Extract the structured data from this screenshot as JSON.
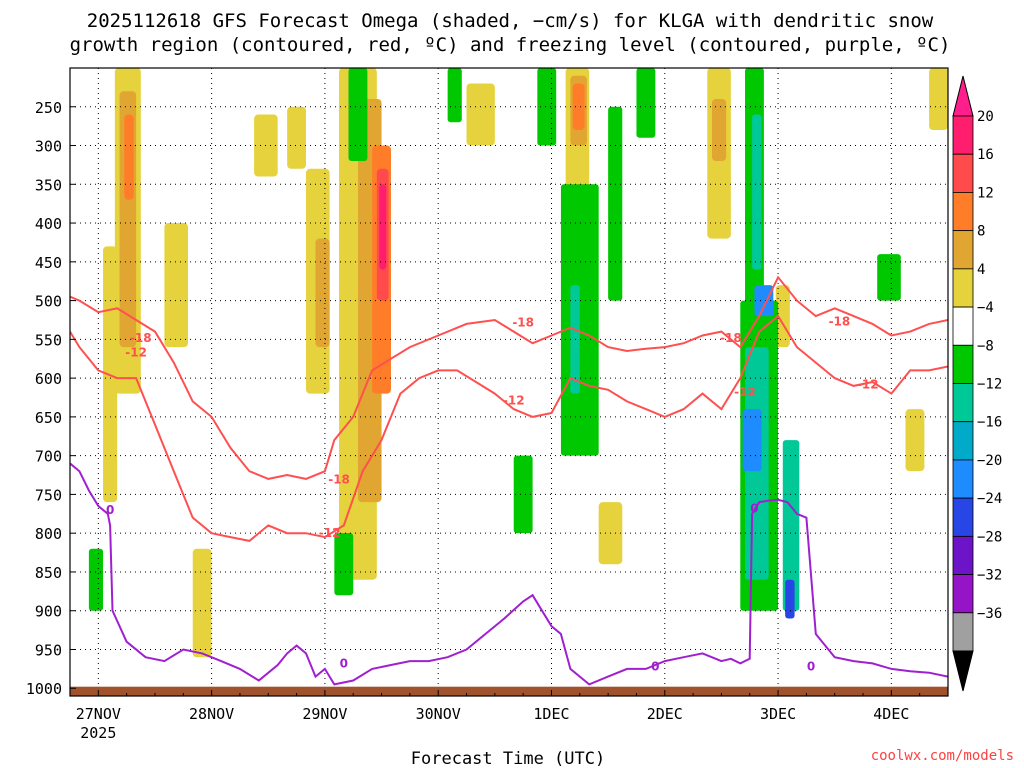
{
  "chart_data": {
    "type": "heatmap",
    "title_line1": "2025112618 GFS Forecast Omega (shaded, −cm/s) for KLGA with dendritic snow",
    "title_line2": "growth region (contoured, red, ºC) and freezing level (contoured, purple, ºC)",
    "xlabel": "Forecast Time (UTC)",
    "ylabel": "",
    "credit": "coolwx.com/models",
    "y_axis": {
      "quantity": "pressure (hPa)",
      "ticks": [
        250,
        300,
        350,
        400,
        450,
        500,
        550,
        600,
        650,
        700,
        750,
        800,
        850,
        900,
        950,
        1000
      ],
      "range": [
        200,
        1010
      ],
      "grid": true
    },
    "x_axis": {
      "ticks": [
        {
          "label": "27NOV",
          "sublabel": "2025",
          "t": 0
        },
        {
          "label": "28NOV",
          "sublabel": "",
          "t": 24
        },
        {
          "label": "29NOV",
          "sublabel": "",
          "t": 48
        },
        {
          "label": "30NOV",
          "sublabel": "",
          "t": 72
        },
        {
          "label": "1DEC",
          "sublabel": "",
          "t": 96
        },
        {
          "label": "2DEC",
          "sublabel": "",
          "t": 120
        },
        {
          "label": "3DEC",
          "sublabel": "",
          "t": 144
        },
        {
          "label": "4DEC",
          "sublabel": "",
          "t": 168
        }
      ],
      "range_hours_from_27NOV00": [
        -6,
        180
      ],
      "grid": true
    },
    "colorbar": {
      "labels": [
        "20",
        "16",
        "12",
        "8",
        "4",
        "−4",
        "−8",
        "−12",
        "−16",
        "−20",
        "−24",
        "−28",
        "−32",
        "−36"
      ],
      "colors": [
        "#ff1e6e",
        "#ff4b4b",
        "#ff7d28",
        "#e1a532",
        "#e6d23c",
        "#ffffff",
        "#00c800",
        "#00c896",
        "#00aac8",
        "#1e8cff",
        "#2846e6",
        "#6e14c8",
        "#9614c8",
        "#a0a0a0"
      ],
      "top_arrow_color": "#ff1e8c",
      "bottom_arrow_color": "#000000"
    },
    "omega_blobs": [
      {
        "t0": 3.5,
        "t1": 9,
        "p0": 200,
        "p1": 620,
        "level": 1
      },
      {
        "t0": 4.5,
        "t1": 8,
        "p0": 230,
        "p1": 560,
        "level": 2
      },
      {
        "t0": 5.5,
        "t1": 7.5,
        "p0": 260,
        "p1": 370,
        "level": 3
      },
      {
        "t0": 1,
        "t1": 4,
        "p0": 430,
        "p1": 760,
        "level": 1
      },
      {
        "t0": 14,
        "t1": 19,
        "p0": 400,
        "p1": 560,
        "level": 1
      },
      {
        "t0": 20,
        "t1": 24,
        "p0": 820,
        "p1": 960,
        "level": 1
      },
      {
        "t0": 33,
        "t1": 38,
        "p0": 260,
        "p1": 340,
        "level": 1
      },
      {
        "t0": 40,
        "t1": 44,
        "p0": 250,
        "p1": 330,
        "level": 1
      },
      {
        "t0": 44,
        "t1": 49,
        "p0": 330,
        "p1": 620,
        "level": 1
      },
      {
        "t0": 46,
        "t1": 49,
        "p0": 420,
        "p1": 560,
        "level": 2
      },
      {
        "t0": 51,
        "t1": 59,
        "p0": 200,
        "p1": 860,
        "level": 1
      },
      {
        "t0": 55,
        "t1": 60,
        "p0": 240,
        "p1": 760,
        "level": 2
      },
      {
        "t0": 58,
        "t1": 62,
        "p0": 300,
        "p1": 620,
        "level": 3
      },
      {
        "t0": 59,
        "t1": 61.5,
        "p0": 330,
        "p1": 500,
        "level": 4
      },
      {
        "t0": 59.5,
        "t1": 61,
        "p0": 350,
        "p1": 460,
        "level": 5
      },
      {
        "t0": 78,
        "t1": 84,
        "p0": 220,
        "p1": 300,
        "level": 1
      },
      {
        "t0": 99,
        "t1": 104,
        "p0": 200,
        "p1": 360,
        "level": 1
      },
      {
        "t0": 100,
        "t1": 103.5,
        "p0": 210,
        "p1": 300,
        "level": 2
      },
      {
        "t0": 100.5,
        "t1": 103,
        "p0": 220,
        "p1": 280,
        "level": 3
      },
      {
        "t0": 106,
        "t1": 111,
        "p0": 760,
        "p1": 840,
        "level": 1
      },
      {
        "t0": 129,
        "t1": 134,
        "p0": 200,
        "p1": 420,
        "level": 1
      },
      {
        "t0": 130,
        "t1": 133,
        "p0": 240,
        "p1": 320,
        "level": 2
      },
      {
        "t0": 143.5,
        "t1": 146.5,
        "p0": 480,
        "p1": 560,
        "level": 1
      },
      {
        "t0": 176,
        "t1": 180,
        "p0": 200,
        "p1": 280,
        "level": 1
      },
      {
        "t0": 171,
        "t1": 175,
        "p0": 640,
        "p1": 720,
        "level": 1
      }
    ],
    "descent_blobs": [
      {
        "t0": 93,
        "t1": 97,
        "p0": 200,
        "p1": 300,
        "level": 1
      },
      {
        "t0": 98,
        "t1": 106,
        "p0": 350,
        "p1": 700,
        "level": 1
      },
      {
        "t0": 100,
        "t1": 102,
        "p0": 480,
        "p1": 620,
        "level": 2
      },
      {
        "t0": 108,
        "t1": 111,
        "p0": 250,
        "p1": 500,
        "level": 1
      },
      {
        "t0": 114,
        "t1": 118,
        "p0": 200,
        "p1": 290,
        "level": 1
      },
      {
        "t0": 53,
        "t1": 57,
        "p0": 200,
        "p1": 320,
        "level": 1
      },
      {
        "t0": 74,
        "t1": 77,
        "p0": 200,
        "p1": 270,
        "level": 1
      },
      {
        "t0": 137,
        "t1": 141,
        "p0": 200,
        "p1": 520,
        "level": 1
      },
      {
        "t0": 138.5,
        "t1": 140.5,
        "p0": 260,
        "p1": 460,
        "level": 2
      },
      {
        "t0": 136,
        "t1": 144,
        "p0": 500,
        "p1": 900,
        "level": 1
      },
      {
        "t0": 137,
        "t1": 142,
        "p0": 560,
        "p1": 860,
        "level": 2
      },
      {
        "t0": 136.5,
        "t1": 140.5,
        "p0": 640,
        "p1": 720,
        "level": 4
      },
      {
        "t0": 139,
        "t1": 143,
        "p0": 480,
        "p1": 520,
        "level": 4
      },
      {
        "t0": 145,
        "t1": 148.5,
        "p0": 680,
        "p1": 900,
        "level": 2
      },
      {
        "t0": 145.5,
        "t1": 147.5,
        "p0": 860,
        "p1": 910,
        "level": 5
      },
      {
        "t0": 165,
        "t1": 170,
        "p0": 440,
        "p1": 500,
        "level": 1
      },
      {
        "t0": 50,
        "t1": 54,
        "p0": 800,
        "p1": 880,
        "level": 1
      },
      {
        "t0": -2,
        "t1": 1,
        "p0": 820,
        "p1": 900,
        "level": 1
      },
      {
        "t0": 88,
        "t1": 92,
        "p0": 700,
        "p1": 800,
        "level": 1
      }
    ],
    "contours_minus18": {
      "t": [
        -6,
        -4,
        0,
        4,
        8,
        12,
        16,
        20,
        24,
        28,
        32,
        36,
        40,
        44,
        48,
        50,
        54,
        58,
        62,
        66,
        72,
        78,
        84,
        88,
        92,
        96,
        100,
        104,
        108,
        112,
        116,
        120,
        124,
        128,
        132,
        136,
        140,
        144,
        148,
        152,
        156,
        160,
        164,
        168,
        172,
        176,
        180
      ],
      "p": [
        495,
        500,
        515,
        510,
        525,
        540,
        580,
        630,
        650,
        690,
        720,
        730,
        725,
        730,
        720,
        680,
        650,
        590,
        575,
        560,
        545,
        530,
        525,
        540,
        555,
        545,
        535,
        545,
        560,
        565,
        562,
        560,
        555,
        545,
        540,
        560,
        520,
        470,
        500,
        520,
        510,
        520,
        530,
        545,
        540,
        530,
        525
      ],
      "labels": [
        {
          "t": 9,
          "p": 548
        },
        {
          "t": 51,
          "p": 731
        },
        {
          "t": 90,
          "p": 528
        },
        {
          "t": 134,
          "p": 548
        },
        {
          "t": 157,
          "p": 527
        }
      ]
    },
    "contours_minus12": {
      "t": [
        -6,
        -4,
        0,
        4,
        8,
        12,
        16,
        20,
        24,
        28,
        32,
        36,
        40,
        44,
        48,
        52,
        56,
        60,
        64,
        68,
        72,
        76,
        80,
        84,
        88,
        92,
        96,
        100,
        104,
        108,
        112,
        116,
        120,
        124,
        128,
        132,
        136,
        140,
        144,
        148,
        152,
        156,
        160,
        164,
        168,
        172,
        176,
        180
      ],
      "p": [
        540,
        560,
        590,
        600,
        600,
        660,
        720,
        780,
        800,
        805,
        810,
        790,
        800,
        800,
        805,
        790,
        720,
        680,
        620,
        600,
        590,
        590,
        605,
        620,
        640,
        650,
        645,
        600,
        610,
        615,
        630,
        640,
        650,
        640,
        620,
        640,
        600,
        540,
        520,
        560,
        580,
        600,
        610,
        605,
        620,
        590,
        590,
        585
      ],
      "labels": [
        {
          "t": 8,
          "p": 567
        },
        {
          "t": 49,
          "p": 800
        },
        {
          "t": 88,
          "p": 629
        },
        {
          "t": 137,
          "p": 618
        },
        {
          "t": 163,
          "p": 608
        }
      ]
    },
    "contours_0C": {
      "t": [
        -6,
        -4,
        -2,
        0,
        2,
        2.5,
        3,
        6,
        10,
        14,
        18,
        22,
        26,
        30,
        34,
        38,
        40,
        42,
        44,
        46,
        48,
        50,
        54,
        58,
        62,
        66,
        70,
        74,
        78,
        82,
        86,
        90,
        92,
        94,
        96,
        98,
        100,
        104,
        108,
        112,
        116,
        120,
        124,
        128,
        132,
        134,
        136,
        138,
        138.5,
        140,
        142,
        144,
        146,
        148,
        150,
        152,
        156,
        160,
        164,
        168,
        172,
        176,
        180
      ],
      "p": [
        710,
        720,
        745,
        765,
        775,
        790,
        900,
        940,
        960,
        965,
        950,
        955,
        965,
        975,
        990,
        970,
        955,
        945,
        955,
        985,
        975,
        995,
        990,
        975,
        970,
        965,
        965,
        960,
        950,
        930,
        910,
        888,
        880,
        900,
        920,
        930,
        975,
        995,
        985,
        975,
        975,
        965,
        960,
        955,
        965,
        962,
        968,
        962,
        775,
        760,
        758,
        757,
        760,
        775,
        780,
        930,
        960,
        965,
        968,
        975,
        978,
        980,
        985
      ],
      "labels": [
        {
          "t": 2.5,
          "p": 770
        },
        {
          "t": 52,
          "p": 968
        },
        {
          "t": 118,
          "p": 972
        },
        {
          "t": 139,
          "p": 768
        },
        {
          "t": 151,
          "p": 972
        }
      ]
    },
    "terrain_color": "#a0522d",
    "red_contour_color": "#ff5050",
    "purple_contour_color": "#a020d0"
  }
}
